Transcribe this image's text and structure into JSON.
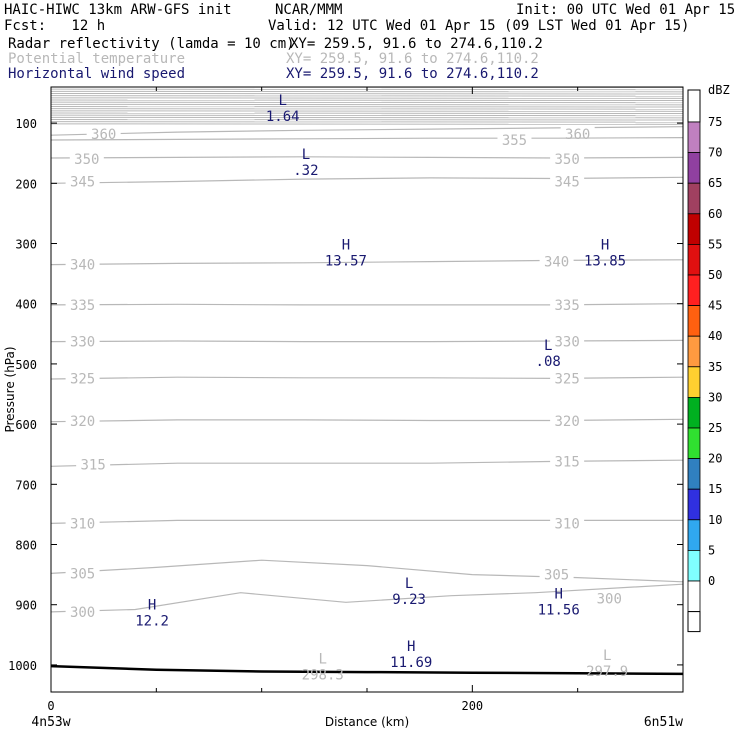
{
  "header": {
    "model": "HAIC-HIWC 13km ARW-GFS init",
    "org": "NCAR/MMM",
    "init": "Init: 00 UTC Wed 01 Apr 15",
    "fcst": "Fcst:   12 h",
    "valid": "Valid: 12 UTC Wed 01 Apr 15 (09 LST Wed 01 Apr 15)"
  },
  "fields": [
    {
      "name": "Radar reflectivity (lamda = 10 cm)",
      "xy": "XY= 259.5, 91.6 to 274.6,110.2",
      "color": "#000000"
    },
    {
      "name": "Potential temperature",
      "xy": "XY= 259.5, 91.6 to 274.6,110.2",
      "color": "#b8b8b8"
    },
    {
      "name": "Horizontal wind speed",
      "xy": "XY= 259.5, 91.6 to 274.6,110.2",
      "color": "#191970"
    }
  ],
  "chart_data": {
    "type": "line",
    "xlabel": "Distance (km)",
    "ylabel": "Pressure (hPa)",
    "xlim": [
      0,
      300
    ],
    "ylim": [
      1045,
      40
    ],
    "x_ticks": [
      0,
      200
    ],
    "y_ticks": [
      100,
      200,
      300,
      400,
      500,
      600,
      700,
      800,
      900,
      1000
    ],
    "x_end_labels": {
      "left": "4n53w",
      "right": "6n51w"
    },
    "theta_contours": [
      {
        "label": "360",
        "points": [
          [
            0,
            120
          ],
          [
            60,
            115
          ],
          [
            120,
            112
          ],
          [
            180,
            110
          ],
          [
            240,
            108
          ],
          [
            300,
            106
          ]
        ],
        "labels_at": [
          [
            25,
            118
          ],
          [
            250,
            118
          ]
        ]
      },
      {
        "label": "355",
        "points": [
          [
            0,
            128
          ],
          [
            60,
            127
          ],
          [
            120,
            126
          ],
          [
            180,
            125
          ],
          [
            240,
            125
          ],
          [
            300,
            124
          ]
        ],
        "labels_at": [
          [
            220,
            128
          ]
        ]
      },
      {
        "label": "350",
        "points": [
          [
            0,
            158
          ],
          [
            60,
            157
          ],
          [
            120,
            156
          ],
          [
            180,
            157
          ],
          [
            240,
            158
          ],
          [
            300,
            157
          ]
        ],
        "labels_at": [
          [
            17,
            160
          ],
          [
            245,
            160
          ]
        ]
      },
      {
        "label": "345",
        "points": [
          [
            0,
            200
          ],
          [
            60,
            197
          ],
          [
            120,
            193
          ],
          [
            180,
            191
          ],
          [
            240,
            192
          ],
          [
            300,
            190
          ]
        ],
        "labels_at": [
          [
            15,
            197
          ],
          [
            245,
            197
          ]
        ]
      },
      {
        "label": "340",
        "points": [
          [
            0,
            335
          ],
          [
            60,
            333
          ],
          [
            120,
            332
          ],
          [
            180,
            330
          ],
          [
            240,
            328
          ],
          [
            300,
            327
          ]
        ],
        "labels_at": [
          [
            15,
            335
          ],
          [
            240,
            330
          ]
        ]
      },
      {
        "label": "335",
        "points": [
          [
            0,
            402
          ],
          [
            60,
            401
          ],
          [
            120,
            402
          ],
          [
            180,
            402
          ],
          [
            240,
            402
          ],
          [
            300,
            400
          ]
        ],
        "labels_at": [
          [
            15,
            402
          ],
          [
            245,
            402
          ]
        ]
      },
      {
        "label": "330",
        "points": [
          [
            0,
            463
          ],
          [
            60,
            462
          ],
          [
            120,
            463
          ],
          [
            180,
            463
          ],
          [
            240,
            462
          ],
          [
            300,
            461
          ]
        ],
        "labels_at": [
          [
            15,
            463
          ],
          [
            245,
            463
          ]
        ]
      },
      {
        "label": "325",
        "points": [
          [
            0,
            525
          ],
          [
            60,
            522
          ],
          [
            120,
            523
          ],
          [
            180,
            523
          ],
          [
            240,
            524
          ],
          [
            300,
            522
          ]
        ],
        "labels_at": [
          [
            15,
            524
          ],
          [
            245,
            524
          ]
        ]
      },
      {
        "label": "320",
        "points": [
          [
            0,
            596
          ],
          [
            60,
            593
          ],
          [
            120,
            593
          ],
          [
            180,
            594
          ],
          [
            240,
            594
          ],
          [
            300,
            592
          ]
        ],
        "labels_at": [
          [
            15,
            595
          ],
          [
            245,
            595
          ]
        ]
      },
      {
        "label": "315",
        "points": [
          [
            0,
            670
          ],
          [
            60,
            665
          ],
          [
            120,
            665
          ],
          [
            180,
            665
          ],
          [
            240,
            662
          ],
          [
            300,
            660
          ]
        ],
        "labels_at": [
          [
            20,
            667
          ],
          [
            245,
            662
          ]
        ]
      },
      {
        "label": "310",
        "points": [
          [
            0,
            765
          ],
          [
            60,
            760
          ],
          [
            120,
            760
          ],
          [
            180,
            760
          ],
          [
            240,
            760
          ],
          [
            300,
            760
          ]
        ],
        "labels_at": [
          [
            15,
            765
          ],
          [
            245,
            765
          ]
        ]
      },
      {
        "label": "305",
        "points": [
          [
            0,
            848
          ],
          [
            50,
            838
          ],
          [
            100,
            826
          ],
          [
            150,
            835
          ],
          [
            200,
            850
          ],
          [
            250,
            855
          ],
          [
            300,
            862
          ]
        ],
        "labels_at": [
          [
            15,
            848
          ],
          [
            240,
            850
          ]
        ]
      },
      {
        "label": "300",
        "points": [
          [
            0,
            912
          ],
          [
            40,
            908
          ],
          [
            90,
            880
          ],
          [
            140,
            896
          ],
          [
            190,
            885
          ],
          [
            230,
            880
          ],
          [
            300,
            866
          ]
        ],
        "labels_at": [
          [
            15,
            912
          ],
          [
            265,
            890
          ]
        ]
      }
    ],
    "terrain": {
      "points": [
        [
          0,
          1002
        ],
        [
          50,
          1008
        ],
        [
          100,
          1011
        ],
        [
          150,
          1012
        ],
        [
          200,
          1013
        ],
        [
          250,
          1014
        ],
        [
          300,
          1015
        ]
      ]
    },
    "markers": [
      {
        "type": "L",
        "value": "1.64",
        "x": 110,
        "p": 75,
        "color": "#191970"
      },
      {
        "type": "L",
        "value": ".32",
        "x": 121,
        "p": 165,
        "color": "#191970"
      },
      {
        "type": "H",
        "value": "13.57",
        "x": 140,
        "p": 315,
        "color": "#191970"
      },
      {
        "type": "H",
        "value": "13.85",
        "x": 263,
        "p": 315,
        "color": "#191970"
      },
      {
        "type": "L",
        "value": ".08",
        "x": 236,
        "p": 482,
        "color": "#191970"
      },
      {
        "type": "L",
        "value": "9.23",
        "x": 170,
        "p": 877,
        "color": "#191970"
      },
      {
        "type": "H",
        "value": "12.2",
        "x": 48,
        "p": 913,
        "color": "#191970"
      },
      {
        "type": "H",
        "value": "11.56",
        "x": 241,
        "p": 895,
        "color": "#191970"
      },
      {
        "type": "H",
        "value": "11.69",
        "x": 171,
        "p": 982,
        "color": "#191970"
      },
      {
        "type": "L",
        "value": "298.3",
        "x": 129,
        "p": 1003,
        "color": "#b8b8b8"
      },
      {
        "type": "L",
        "value": "297.9",
        "x": 264,
        "p": 997,
        "color": "#b8b8b8"
      }
    ]
  },
  "colorbar": {
    "unit": "dBZ",
    "labels": [
      "75",
      "70",
      "65",
      "60",
      "55",
      "50",
      "45",
      "40",
      "35",
      "30",
      "25",
      "20",
      "15",
      "10",
      "5",
      "0"
    ],
    "colors": [
      "#c080c0",
      "#9040a0",
      "#a04060",
      "#c00000",
      "#e01010",
      "#ff2020",
      "#ff6010",
      "#ff9a40",
      "#ffd030",
      "#00b020",
      "#30e030",
      "#3080c0",
      "#3030e0",
      "#30a8f0",
      "#80ffff",
      "#ffffff"
    ]
  }
}
